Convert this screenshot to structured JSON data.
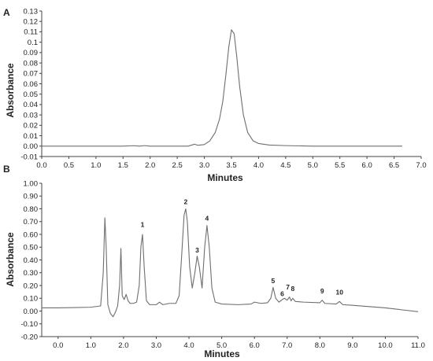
{
  "colors": {
    "trace": "#6e6e6e",
    "axis": "#444444",
    "text": "#222222"
  },
  "chart_data": [
    {
      "panel_label": "A",
      "type": "line",
      "xlabel": "Minutes",
      "ylabel": "Absorbance",
      "xlim": [
        0.0,
        7.0
      ],
      "ylim": [
        -0.01,
        0.13
      ],
      "xticks": [
        "0.0",
        "0.5",
        "1.0",
        "1.5",
        "2.0",
        "2.5",
        "3.0",
        "3.5",
        "4.0",
        "4.5",
        "5.0",
        "5.5",
        "6.0",
        "6.5",
        "7.0"
      ],
      "yticks": [
        "0.13",
        "0.12",
        "0.11",
        "0.1",
        "0.09",
        "0.08",
        "0.07",
        "0.06",
        "0.05",
        "0.04",
        "0.03",
        "0.02",
        "0.01",
        "0.00",
        "-0.01"
      ],
      "grid": false,
      "series": [
        {
          "x": [
            0.0,
            0.5,
            1.0,
            1.5,
            1.7,
            1.8,
            1.9,
            2.0,
            2.2,
            2.5,
            2.7,
            2.78,
            2.82,
            2.88,
            3.0,
            3.1,
            3.2,
            3.28,
            3.34,
            3.4,
            3.45,
            3.5,
            3.55,
            3.6,
            3.65,
            3.72,
            3.8,
            3.9,
            4.0,
            4.2,
            4.5,
            5.0,
            6.0,
            6.65
          ],
          "y": [
            0.0,
            0.0,
            0.0,
            0.0,
            0.0004,
            0.0,
            0.0005,
            0.0,
            0.0,
            0.0,
            0.0,
            0.0012,
            0.0018,
            0.0008,
            0.0015,
            0.005,
            0.013,
            0.026,
            0.043,
            0.07,
            0.095,
            0.112,
            0.108,
            0.085,
            0.058,
            0.03,
            0.013,
            0.005,
            0.0025,
            0.001,
            0.0005,
            0.0,
            0.0,
            0.0
          ]
        }
      ]
    },
    {
      "panel_label": "B",
      "type": "line",
      "xlabel": "Minutes",
      "ylabel": "Absorbance",
      "xlim": [
        -0.5,
        11.0
      ],
      "ylim": [
        -0.2,
        1.0
      ],
      "xticks": [
        "0.0",
        "1.0",
        "2.0",
        "3.0",
        "4.0",
        "5.0",
        "6.0",
        "7.0",
        "8.0",
        "9.0",
        "10.0",
        "11.0"
      ],
      "yticks": [
        "1.00",
        "0.90",
        "0.80",
        "0.70",
        "0.60",
        "0.50",
        "0.40",
        "0.30",
        "0.20",
        "0.10",
        "0.00",
        "-0.10",
        "-0.20"
      ],
      "grid": false,
      "peak_labels": [
        {
          "text": "1",
          "x": 2.58,
          "y": 0.64
        },
        {
          "text": "2",
          "x": 3.9,
          "y": 0.82
        },
        {
          "text": "3",
          "x": 4.25,
          "y": 0.44
        },
        {
          "text": "4",
          "x": 4.55,
          "y": 0.69
        },
        {
          "text": "5",
          "x": 6.57,
          "y": 0.2
        },
        {
          "text": "6",
          "x": 6.85,
          "y": 0.1
        },
        {
          "text": "7",
          "x": 7.02,
          "y": 0.15
        },
        {
          "text": "8",
          "x": 7.17,
          "y": 0.14
        },
        {
          "text": "9",
          "x": 8.07,
          "y": 0.12
        },
        {
          "text": "10",
          "x": 8.6,
          "y": 0.11
        }
      ],
      "series": [
        {
          "x": [
            -0.5,
            0.0,
            0.5,
            1.0,
            1.3,
            1.38,
            1.43,
            1.47,
            1.52,
            1.6,
            1.68,
            1.75,
            1.82,
            1.88,
            1.92,
            1.96,
            2.02,
            2.08,
            2.14,
            2.2,
            2.3,
            2.4,
            2.48,
            2.53,
            2.58,
            2.63,
            2.7,
            2.8,
            3.0,
            3.1,
            3.2,
            3.4,
            3.6,
            3.7,
            3.78,
            3.85,
            3.9,
            3.95,
            4.02,
            4.1,
            4.18,
            4.25,
            4.32,
            4.4,
            4.48,
            4.55,
            4.62,
            4.7,
            4.8,
            5.0,
            5.5,
            5.9,
            6.0,
            6.2,
            6.4,
            6.5,
            6.57,
            6.65,
            6.75,
            6.85,
            6.92,
            7.0,
            7.07,
            7.12,
            7.17,
            7.25,
            7.5,
            8.0,
            8.07,
            8.15,
            8.5,
            8.6,
            8.7,
            9.0,
            9.5,
            10.0,
            10.5,
            11.0
          ],
          "y": [
            0.025,
            0.025,
            0.027,
            0.03,
            0.04,
            0.3,
            0.73,
            0.5,
            0.05,
            -0.02,
            -0.045,
            -0.01,
            0.04,
            0.2,
            0.49,
            0.12,
            0.09,
            0.13,
            0.08,
            0.06,
            0.06,
            0.07,
            0.2,
            0.5,
            0.6,
            0.35,
            0.08,
            0.05,
            0.05,
            0.07,
            0.05,
            0.06,
            0.06,
            0.12,
            0.45,
            0.75,
            0.8,
            0.7,
            0.35,
            0.18,
            0.3,
            0.43,
            0.34,
            0.18,
            0.5,
            0.67,
            0.5,
            0.18,
            0.07,
            0.055,
            0.05,
            0.055,
            0.07,
            0.06,
            0.065,
            0.1,
            0.185,
            0.1,
            0.07,
            0.09,
            0.1,
            0.085,
            0.11,
            0.08,
            0.1,
            0.075,
            0.07,
            0.065,
            0.085,
            0.06,
            0.055,
            0.075,
            0.05,
            0.045,
            0.035,
            0.025,
            0.01,
            -0.005
          ]
        }
      ]
    }
  ]
}
